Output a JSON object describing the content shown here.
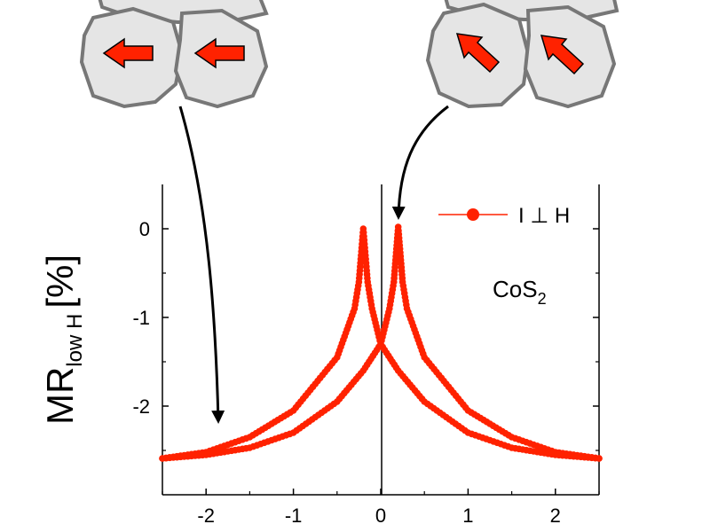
{
  "chart_data": {
    "type": "scatter",
    "xlim": [
      -2.5,
      2.5
    ],
    "ylim": [
      -3.0,
      0.5
    ],
    "x_ticks": [
      -2,
      -1,
      0,
      1,
      2
    ],
    "y_ticks": [
      0,
      -1,
      -2
    ],
    "x_tick_labels": [
      "-2",
      "-1",
      "0",
      "1",
      "2"
    ],
    "y_tick_labels": [
      "0",
      "-1",
      "-2"
    ],
    "ylabel_main": "MR",
    "ylabel_sub": "low H",
    "ylabel_unit": "[%]",
    "xlabel": "",
    "legend": {
      "label": "I ⊥ H",
      "placement": "top-right"
    },
    "annotation": {
      "main": "CoS",
      "sub": "2"
    },
    "colors": {
      "series": "#ff2200",
      "axis": "#000000",
      "grain_fill": "#e5e5e5",
      "grain_stroke": "#777777",
      "moment_arrow": "#ff2200"
    },
    "grid": false,
    "series": [
      {
        "name": "I ⊥ H",
        "branches": [
          {
            "points": [
              [
                -2.5,
                -2.59
              ],
              [
                -2.0,
                -2.55
              ],
              [
                -1.5,
                -2.47
              ],
              [
                -1.0,
                -2.3
              ],
              [
                -0.5,
                -1.95
              ],
              [
                -0.2,
                -1.6
              ],
              [
                0.0,
                -1.3
              ],
              [
                0.1,
                -0.9
              ],
              [
                0.15,
                -0.6
              ],
              [
                0.2,
                0.02
              ],
              [
                0.25,
                -0.6
              ],
              [
                0.3,
                -0.9
              ],
              [
                0.5,
                -1.45
              ],
              [
                1.0,
                -2.05
              ],
              [
                1.5,
                -2.35
              ],
              [
                2.0,
                -2.52
              ],
              [
                2.5,
                -2.59
              ]
            ]
          },
          {
            "points": [
              [
                -2.5,
                -2.59
              ],
              [
                -2.0,
                -2.52
              ],
              [
                -1.5,
                -2.35
              ],
              [
                -1.0,
                -2.05
              ],
              [
                -0.5,
                -1.45
              ],
              [
                -0.3,
                -0.9
              ],
              [
                -0.25,
                -0.6
              ],
              [
                -0.2,
                0.0
              ],
              [
                -0.15,
                -0.6
              ],
              [
                -0.1,
                -0.9
              ],
              [
                0.0,
                -1.3
              ],
              [
                0.2,
                -1.6
              ],
              [
                0.5,
                -1.95
              ],
              [
                1.0,
                -2.3
              ],
              [
                1.5,
                -2.47
              ],
              [
                2.0,
                -2.55
              ],
              [
                2.5,
                -2.59
              ]
            ]
          }
        ]
      }
    ],
    "arrow_targets": [
      {
        "x": -1.85,
        "y": -2.2
      },
      {
        "x": 0.18,
        "y": 0.1
      }
    ]
  },
  "illustration": {
    "left_cluster": {
      "moment_direction": "left"
    },
    "right_cluster": {
      "moment_direction": "up-left"
    }
  }
}
